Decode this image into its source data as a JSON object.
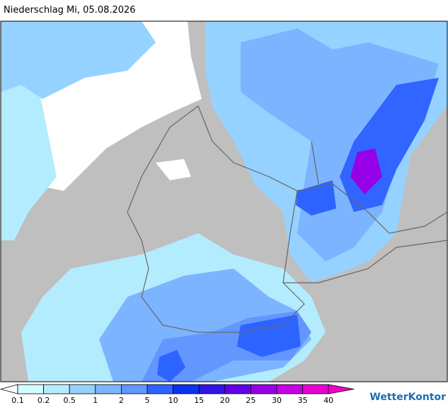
{
  "header": {
    "title": "Niederschlag Mi, 05.08.2026"
  },
  "legend": {
    "labels": [
      "0.1",
      "0.2",
      "0.5",
      "1",
      "2",
      "5",
      "10",
      "15",
      "20",
      "25",
      "30",
      "35",
      "40"
    ],
    "colors": [
      "#ffffff",
      "#d2ffff",
      "#b4ecff",
      "#96d2ff",
      "#7db4ff",
      "#6496ff",
      "#2d64ff",
      "#0a32f0",
      "#3214e6",
      "#6400e6",
      "#9600e6",
      "#c800e6",
      "#e600d2",
      "#f000c8"
    ]
  },
  "brand": "WetterKontor"
}
